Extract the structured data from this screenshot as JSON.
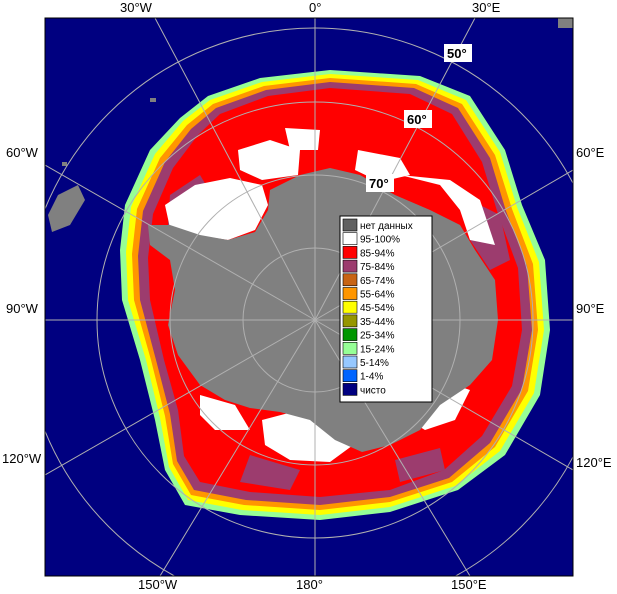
{
  "map": {
    "colors": {
      "ocean": "#000080",
      "land": "#808080",
      "frame_bg": "#ffffff",
      "grid": "#b0b0b0"
    },
    "lon_labels": {
      "w30": "30°W",
      "zero": "0°",
      "e30": "30°E",
      "w60": "60°W",
      "e60": "60°E",
      "w90": "90°W",
      "e90": "90°E",
      "w120": "120°W",
      "e120": "120°E",
      "w150": "150°W",
      "c180": "180°",
      "e150": "150°E"
    },
    "lat_labels": {
      "l50": "50°",
      "l60": "60°",
      "l70": "70°"
    }
  },
  "legend": {
    "items": [
      {
        "label": "нет данных",
        "color": "#606060"
      },
      {
        "label": "95-100%",
        "color": "#ffffff"
      },
      {
        "label": "85-94%",
        "color": "#ff0000"
      },
      {
        "label": "75-84%",
        "color": "#9c3c6e"
      },
      {
        "label": "65-74%",
        "color": "#c86414"
      },
      {
        "label": "55-64%",
        "color": "#ff9600"
      },
      {
        "label": "45-54%",
        "color": "#ffff00"
      },
      {
        "label": "35-44%",
        "color": "#969600"
      },
      {
        "label": "25-34%",
        "color": "#009600"
      },
      {
        "label": "15-24%",
        "color": "#96ff96"
      },
      {
        "label": "5-14%",
        "color": "#96c8ff"
      },
      {
        "label": "1-4%",
        "color": "#0064ff"
      },
      {
        "label": "чисто",
        "color": "#000080"
      }
    ]
  }
}
